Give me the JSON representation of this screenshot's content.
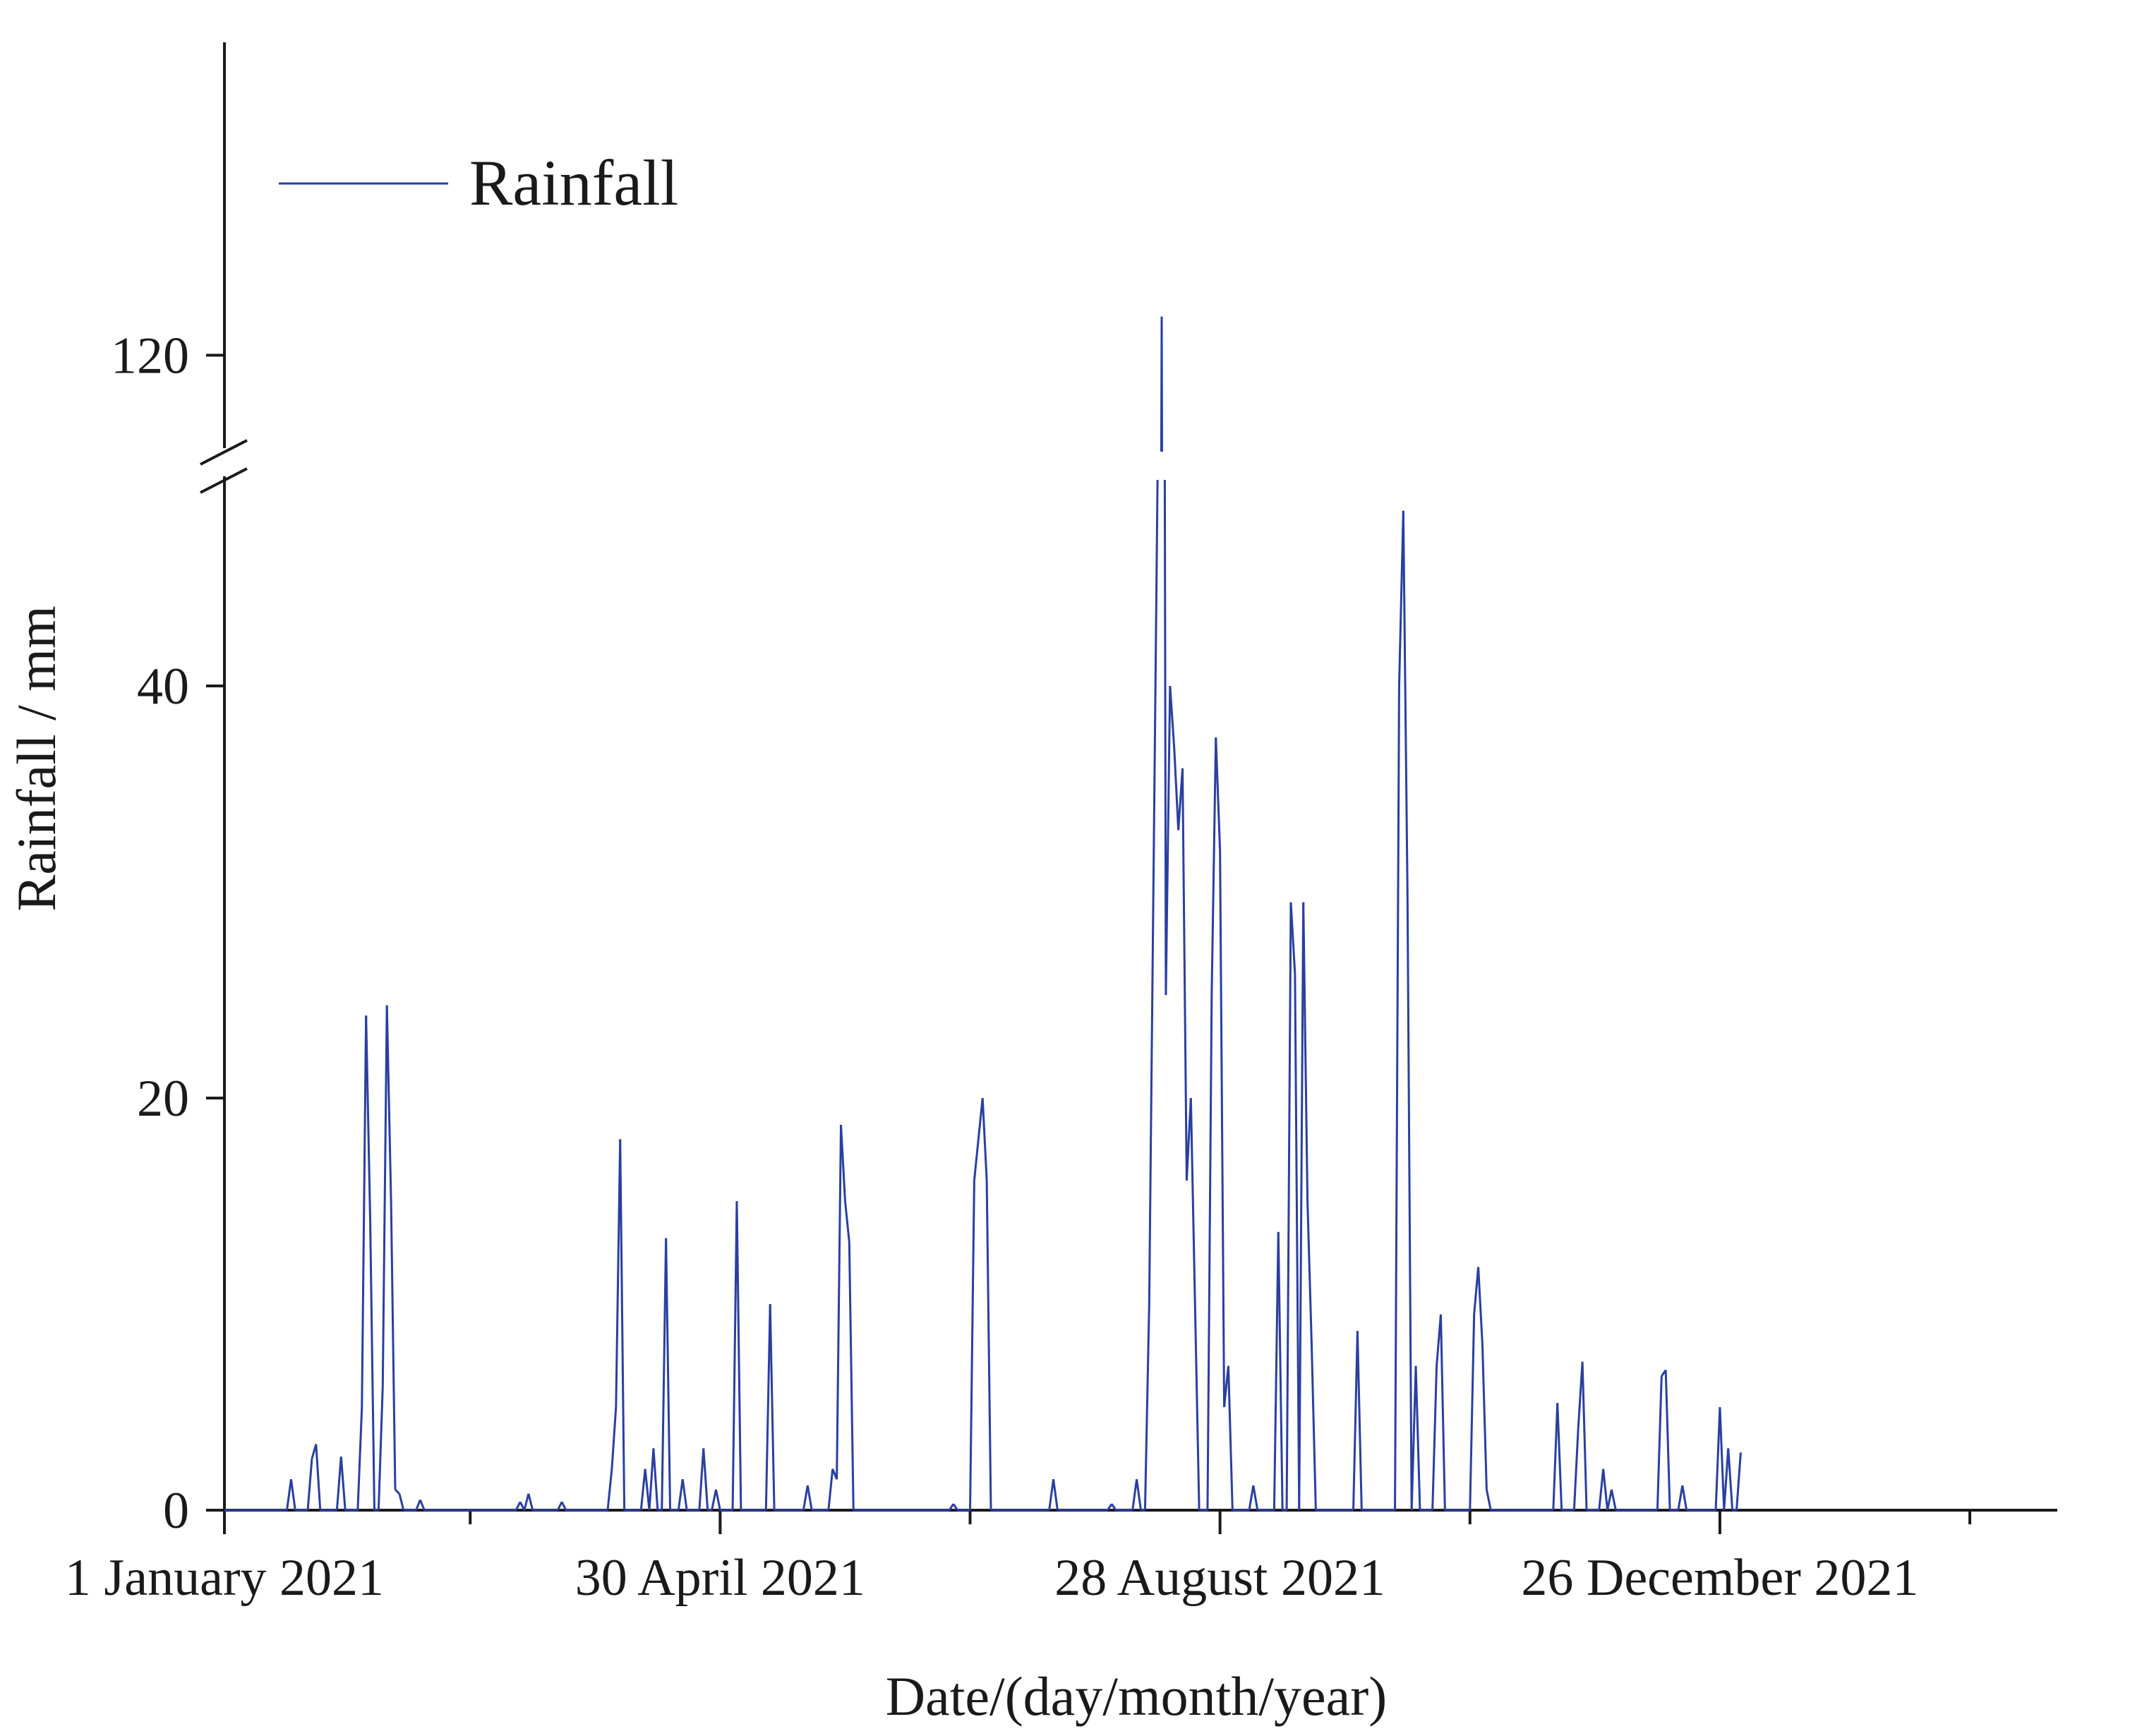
{
  "chart_data": {
    "type": "line",
    "title": "",
    "xlabel": "Date/(day/month/year)",
    "ylabel": "Rainfall / mm",
    "legend": {
      "entries": [
        "Rainfall"
      ],
      "placement": "top-left"
    },
    "series_color": "#2a3fa0",
    "axis_color": "#1a1a1a",
    "x_range_days": [
      0,
      440
    ],
    "x_ticks": [
      {
        "day": 0,
        "label": "1 January 2021"
      },
      {
        "day": 119,
        "label": "30 April 2021"
      },
      {
        "day": 239,
        "label": "28 August 2021"
      },
      {
        "day": 359,
        "label": "26 December 2021"
      }
    ],
    "x_minor_ticks": [
      59,
      179,
      299,
      419
    ],
    "y_axis_break": {
      "lower_max": 50,
      "upper_min": 115,
      "upper_max": 130
    },
    "y_ticks": [
      0,
      20,
      40,
      120
    ],
    "series": [
      {
        "name": "Rainfall",
        "points": [
          [
            0,
            0
          ],
          [
            15,
            0
          ],
          [
            16,
            1.5
          ],
          [
            17,
            0
          ],
          [
            20,
            0
          ],
          [
            21,
            2.5
          ],
          [
            22,
            3.2
          ],
          [
            23,
            0
          ],
          [
            27,
            0
          ],
          [
            28,
            2.6
          ],
          [
            29,
            0
          ],
          [
            32,
            0
          ],
          [
            33,
            5
          ],
          [
            34,
            24
          ],
          [
            35,
            14
          ],
          [
            36,
            0
          ],
          [
            37,
            0
          ],
          [
            38,
            6
          ],
          [
            39,
            24.5
          ],
          [
            40,
            15
          ],
          [
            41,
            1
          ],
          [
            42,
            0.8
          ],
          [
            43,
            0
          ],
          [
            46,
            0
          ],
          [
            47,
            0.5
          ],
          [
            48,
            0
          ],
          [
            70,
            0
          ],
          [
            71,
            0.4
          ],
          [
            72,
            0
          ],
          [
            73,
            0.8
          ],
          [
            74,
            0
          ],
          [
            80,
            0
          ],
          [
            81,
            0.4
          ],
          [
            82,
            0
          ],
          [
            92,
            0
          ],
          [
            93,
            2
          ],
          [
            94,
            5
          ],
          [
            95,
            18
          ],
          [
            96,
            0
          ],
          [
            100,
            0
          ],
          [
            101,
            2
          ],
          [
            102,
            0
          ],
          [
            103,
            3
          ],
          [
            104,
            0
          ],
          [
            105,
            0
          ],
          [
            106,
            13.2
          ],
          [
            107,
            0
          ],
          [
            109,
            0
          ],
          [
            110,
            1.5
          ],
          [
            111,
            0
          ],
          [
            114,
            0
          ],
          [
            115,
            3
          ],
          [
            116,
            0
          ],
          [
            117,
            0
          ],
          [
            118,
            1
          ],
          [
            119,
            0
          ],
          [
            122,
            0
          ],
          [
            123,
            15
          ],
          [
            124,
            0
          ],
          [
            130,
            0
          ],
          [
            131,
            10
          ],
          [
            132,
            0
          ],
          [
            139,
            0
          ],
          [
            140,
            1.2
          ],
          [
            141,
            0
          ],
          [
            145,
            0
          ],
          [
            146,
            2
          ],
          [
            147,
            1.5
          ],
          [
            148,
            18.7
          ],
          [
            149,
            15
          ],
          [
            150,
            13
          ],
          [
            151,
            0
          ],
          [
            174,
            0
          ],
          [
            175,
            0.3
          ],
          [
            176,
            0
          ],
          [
            179,
            0
          ],
          [
            180,
            16
          ],
          [
            181,
            18
          ],
          [
            182,
            20
          ],
          [
            183,
            16
          ],
          [
            184,
            0
          ],
          [
            198,
            0
          ],
          [
            199,
            1.5
          ],
          [
            200,
            0
          ],
          [
            212,
            0
          ],
          [
            213,
            0.3
          ],
          [
            214,
            0
          ],
          [
            218,
            0
          ],
          [
            219,
            1.5
          ],
          [
            220,
            0
          ],
          [
            221,
            0
          ],
          [
            222,
            10
          ],
          [
            223,
            30
          ],
          [
            224,
            50
          ],
          [
            225,
            122
          ],
          [
            226,
            25
          ],
          [
            227,
            40
          ],
          [
            228,
            37
          ],
          [
            229,
            33
          ],
          [
            230,
            36
          ],
          [
            231,
            16
          ],
          [
            232,
            20
          ],
          [
            233,
            10
          ],
          [
            234,
            0
          ],
          [
            235,
            0
          ],
          [
            236,
            0
          ],
          [
            237,
            25
          ],
          [
            238,
            37.5
          ],
          [
            239,
            32
          ],
          [
            240,
            5
          ],
          [
            241,
            7
          ],
          [
            242,
            0
          ],
          [
            246,
            0
          ],
          [
            247,
            1.2
          ],
          [
            248,
            0
          ],
          [
            252,
            0
          ],
          [
            253,
            13.5
          ],
          [
            254,
            0
          ],
          [
            255,
            0
          ],
          [
            256,
            29.5
          ],
          [
            257,
            26
          ],
          [
            258,
            0
          ],
          [
            259,
            29.5
          ],
          [
            260,
            15
          ],
          [
            261,
            8
          ],
          [
            262,
            0
          ],
          [
            271,
            0
          ],
          [
            272,
            8.7
          ],
          [
            273,
            0
          ],
          [
            281,
            0
          ],
          [
            282,
            40
          ],
          [
            283,
            48.5
          ],
          [
            284,
            30
          ],
          [
            285,
            0
          ],
          [
            286,
            7
          ],
          [
            287,
            0
          ],
          [
            290,
            0
          ],
          [
            291,
            7
          ],
          [
            292,
            9.5
          ],
          [
            293,
            0
          ],
          [
            299,
            0
          ],
          [
            300,
            9.5
          ],
          [
            301,
            11.8
          ],
          [
            302,
            8
          ],
          [
            303,
            1
          ],
          [
            304,
            0
          ],
          [
            319,
            0
          ],
          [
            320,
            5.2
          ],
          [
            321,
            0
          ],
          [
            324,
            0
          ],
          [
            325,
            4
          ],
          [
            326,
            7.2
          ],
          [
            327,
            0
          ],
          [
            330,
            0
          ],
          [
            331,
            2
          ],
          [
            332,
            0
          ],
          [
            333,
            1
          ],
          [
            334,
            0
          ],
          [
            344,
            0
          ],
          [
            345,
            6.5
          ],
          [
            346,
            6.8
          ],
          [
            347,
            0
          ],
          [
            349,
            0
          ],
          [
            350,
            1.2
          ],
          [
            351,
            0
          ],
          [
            358,
            0
          ],
          [
            359,
            5
          ],
          [
            360,
            0
          ],
          [
            361,
            3
          ],
          [
            362,
            0
          ],
          [
            363,
            0
          ],
          [
            364,
            2.8
          ]
        ]
      }
    ]
  }
}
